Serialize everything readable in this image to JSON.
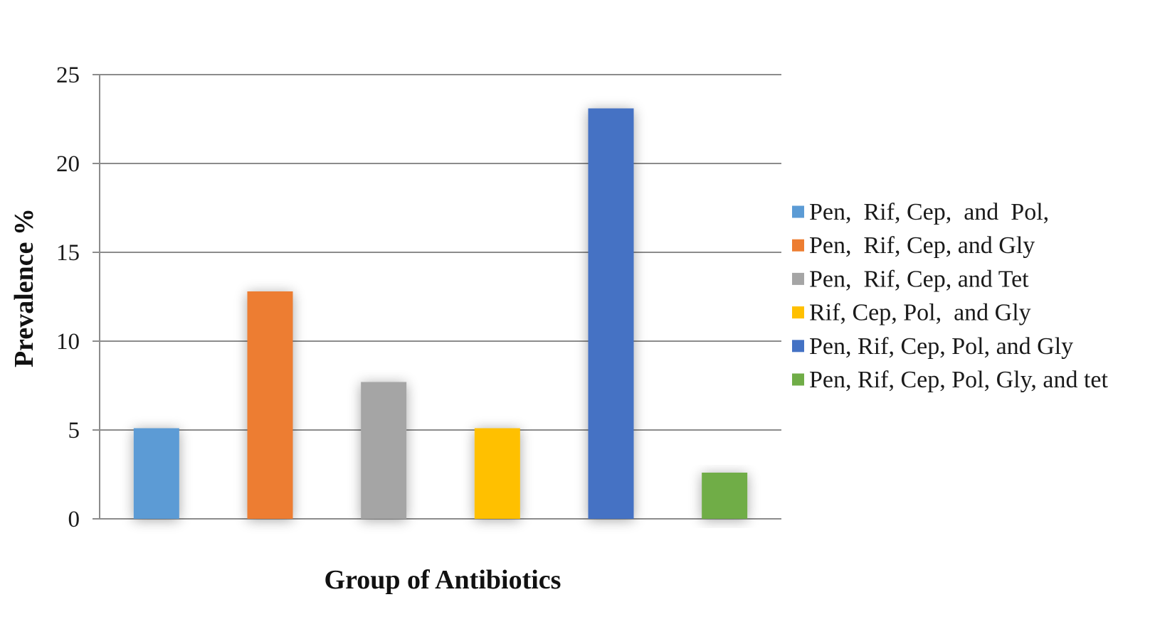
{
  "chart_data": {
    "type": "bar",
    "xlabel": "Group of Antibiotics",
    "ylabel": "Prevalence %",
    "ylim": [
      0,
      25
    ],
    "yticks": [
      0,
      5,
      10,
      15,
      20,
      25
    ],
    "grid": true,
    "legend_position": "right",
    "series": [
      {
        "name": "Pen,  Rif, Cep,  and  Pol,",
        "value": 5.1,
        "color": "#5B9BD5"
      },
      {
        "name": "Pen,  Rif, Cep, and Gly",
        "value": 12.8,
        "color": "#ED7D31"
      },
      {
        "name": "Pen,  Rif, Cep, and Tet",
        "value": 7.7,
        "color": "#A5A5A5"
      },
      {
        "name": "Rif, Cep, Pol,  and Gly",
        "value": 5.1,
        "color": "#FFC000"
      },
      {
        "name": "Pen, Rif, Cep, Pol, and Gly",
        "value": 23.1,
        "color": "#4472C4"
      },
      {
        "name": "Pen, Rif, Cep, Pol, Gly, and tet",
        "value": 2.6,
        "color": "#70AD47"
      }
    ]
  },
  "colors": {
    "gridline": "#8c8c8c",
    "axis_line": "#8c8c8c"
  }
}
